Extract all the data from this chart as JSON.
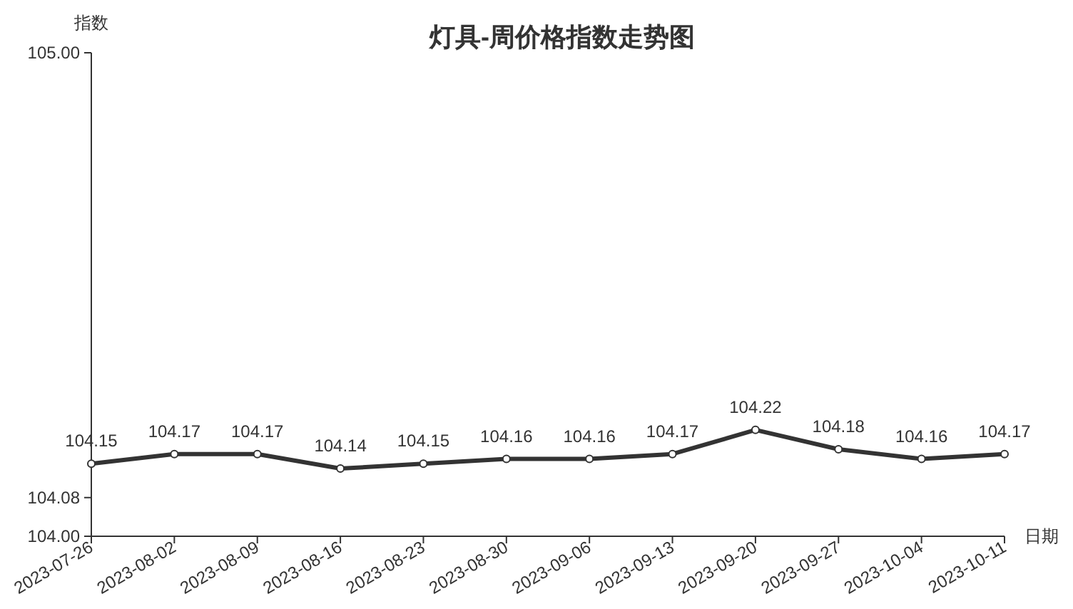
{
  "chart_data": {
    "type": "line",
    "title": "灯具-周价格指数走势图",
    "xlabel": "日期",
    "ylabel": "指数",
    "categories": [
      "2023-07-26",
      "2023-08-02",
      "2023-08-09",
      "2023-08-16",
      "2023-08-23",
      "2023-08-30",
      "2023-09-06",
      "2023-09-13",
      "2023-09-20",
      "2023-09-27",
      "2023-10-04",
      "2023-10-11"
    ],
    "series": [
      {
        "color": "#333333",
        "values": [
          104.15,
          104.17,
          104.17,
          104.14,
          104.15,
          104.16,
          104.16,
          104.17,
          104.22,
          104.18,
          104.16,
          104.17
        ]
      }
    ],
    "ylim": [
      104,
      105
    ],
    "yticks": [
      {
        "value": 104,
        "label": "104.00"
      },
      {
        "value": 104.08,
        "label": "104.08"
      },
      {
        "value": 105,
        "label": "105.00"
      }
    ],
    "data_labels": true,
    "marker": "circle",
    "line_style": "solid"
  }
}
